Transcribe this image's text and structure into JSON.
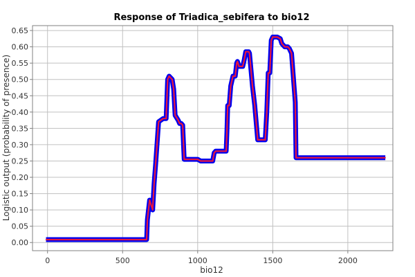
{
  "chart_data": {
    "type": "line",
    "title": "Response of Triadica_sebifera to bio12",
    "xlabel": "bio12",
    "ylabel": "Logistic output (probability of presence)",
    "xlim": [
      -100,
      2300
    ],
    "ylim": [
      -0.025,
      0.665
    ],
    "x_ticks": [
      0,
      500,
      1000,
      1500,
      2000
    ],
    "y_ticks": [
      0.0,
      0.05,
      0.1,
      0.15,
      0.2,
      0.25,
      0.3,
      0.35,
      0.4,
      0.45,
      0.5,
      0.55,
      0.6,
      0.65
    ],
    "grid": true,
    "colors": {
      "mean": "#e8173f",
      "band": "#0000ee",
      "grid": "#c0c0c0"
    },
    "series": [
      {
        "x": [
          -10,
          660,
          665,
          680,
          700,
          710,
          720,
          740,
          770,
          790,
          800,
          810,
          830,
          840,
          850,
          870,
          880,
          890,
          900,
          910,
          920,
          950,
          1000,
          1020,
          1040,
          1060,
          1100,
          1110,
          1120,
          1170,
          1190,
          1195,
          1200,
          1210,
          1220,
          1235,
          1250,
          1260,
          1265,
          1275,
          1300,
          1310,
          1320,
          1340,
          1345,
          1365,
          1380,
          1400,
          1440,
          1450,
          1460,
          1470,
          1480,
          1490,
          1500,
          1530,
          1550,
          1560,
          1580,
          1600,
          1610,
          1625,
          1650,
          1655,
          1690,
          2200,
          2250
        ],
        "y": [
          0.009,
          0.009,
          0.07,
          0.13,
          0.1,
          0.18,
          0.24,
          0.37,
          0.38,
          0.38,
          0.5,
          0.51,
          0.5,
          0.47,
          0.39,
          0.375,
          0.365,
          0.365,
          0.36,
          0.255,
          0.255,
          0.255,
          0.255,
          0.25,
          0.25,
          0.25,
          0.25,
          0.275,
          0.28,
          0.28,
          0.28,
          0.34,
          0.42,
          0.42,
          0.48,
          0.51,
          0.51,
          0.55,
          0.555,
          0.54,
          0.54,
          0.56,
          0.585,
          0.585,
          0.58,
          0.48,
          0.42,
          0.315,
          0.315,
          0.315,
          0.4,
          0.52,
          0.52,
          0.62,
          0.63,
          0.63,
          0.625,
          0.61,
          0.6,
          0.6,
          0.595,
          0.58,
          0.43,
          0.26,
          0.26,
          0.26,
          0.26
        ]
      }
    ]
  }
}
